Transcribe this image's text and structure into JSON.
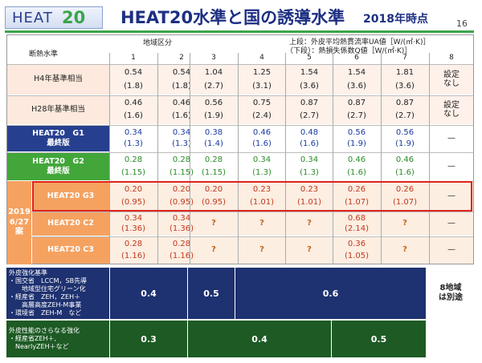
{
  "header": {
    "logo_text": "HEAT",
    "logo_num": "20",
    "title": "HEAT20水準と国の誘導水準",
    "date": "2018年時点",
    "page_number": "16"
  },
  "table": {
    "corner_label": "断熱水準",
    "region_label": "地域区分",
    "legend_top": "上段：外皮平均熱貫流率UA値［W/(㎡·K)］",
    "legend_bottom": "（下段）：熱損失係数Q値［W/(㎡·K)］",
    "regions": [
      "1",
      "2",
      "3",
      "4",
      "5",
      "6",
      "7",
      "8"
    ],
    "side_label": "2019\n6/27\n案",
    "rows": [
      {
        "label": "H4年基準相当",
        "top": [
          "0.54",
          "0.54",
          "1.04",
          "1.25",
          "1.54",
          "1.54",
          "1.81"
        ],
        "bottom": [
          "(1.8)",
          "(1.8)",
          "(2.7)",
          "(3.1)",
          "(3.6)",
          "(3.6)",
          "(3.6)"
        ],
        "col8": "設定\nなし"
      },
      {
        "label": "H28年基準相当",
        "top": [
          "0.46",
          "0.46",
          "0.56",
          "0.75",
          "0.87",
          "0.87",
          "0.87"
        ],
        "bottom": [
          "(1.6)",
          "(1.6)",
          "(1.9)",
          "(2.4)",
          "(2.7)",
          "(2.7)",
          "(2.7)"
        ],
        "col8": "設定\nなし"
      },
      {
        "label": "HEAT20　G1\n最終版",
        "top": [
          "0.34",
          "0.34",
          "0.38",
          "0.46",
          "0.48",
          "0.56",
          "0.56"
        ],
        "bottom": [
          "(1.3)",
          "(1.3)",
          "(1.4)",
          "(1.6)",
          "(1.6)",
          "(1.9)",
          "(1.9)"
        ],
        "col8": "—"
      },
      {
        "label": "HEAT20　G2\n最終版",
        "top": [
          "0.28",
          "0.28",
          "0.28",
          "0.34",
          "0.34",
          "0.46",
          "0.46"
        ],
        "bottom": [
          "(1.15)",
          "(1.15)",
          "(1.15)",
          "(1.3)",
          "(1.3)",
          "(1.6)",
          "(1.6)"
        ],
        "col8": "—"
      },
      {
        "label": "HEAT20 G3",
        "top": [
          "0.20",
          "0.20",
          "0.20",
          "0.23",
          "0.23",
          "0.26",
          "0.26"
        ],
        "bottom": [
          "(0.95)",
          "(0.95)",
          "(0.95)",
          "(1.01)",
          "(1.01)",
          "(1.07)",
          "(1.07)"
        ],
        "col8": "—"
      },
      {
        "label": "HEAT20 C2",
        "top": [
          "0.34",
          "0.34",
          "?",
          "?",
          "?",
          "0.68",
          "?"
        ],
        "bottom": [
          "(1.36)",
          "(1.36)",
          "",
          "",
          "",
          "(2.14)",
          ""
        ],
        "col8": "—"
      },
      {
        "label": "HEAT20 C3",
        "top": [
          "0.28",
          "0.28",
          "?",
          "?",
          "?",
          "0.36",
          "?"
        ],
        "bottom": [
          "(1.16)",
          "(1.16)",
          "",
          "",
          "",
          "(1.05)",
          ""
        ],
        "col8": "—"
      }
    ]
  },
  "footer": {
    "row1_label": "外皮強化基準\n・国交省　LCCM，SB先導\n　　地域型住宅グリーン化\n・経産省　ZEH，ZEH＋\n　　高層高度ZEH-M事業\n・環境省　ZEH-M　など",
    "row1_values": [
      "0.4",
      "0.5",
      "0.6"
    ],
    "row1_note": "8地域\nは別途",
    "row2_label": "外皮性能のさらなる強化\n・経産省ZEH＋,\n　NearlyZEH＋など",
    "row2_values": [
      "0.3",
      "0.4",
      "0.5"
    ]
  },
  "colors": {
    "g1_bg": "#26408f",
    "g2_bg": "#42a63b",
    "proposal_bg": "#f5a261",
    "highlight_border": "#e0231b",
    "footer_dark": "#1e3170",
    "footer_green": "#1d5a24"
  }
}
